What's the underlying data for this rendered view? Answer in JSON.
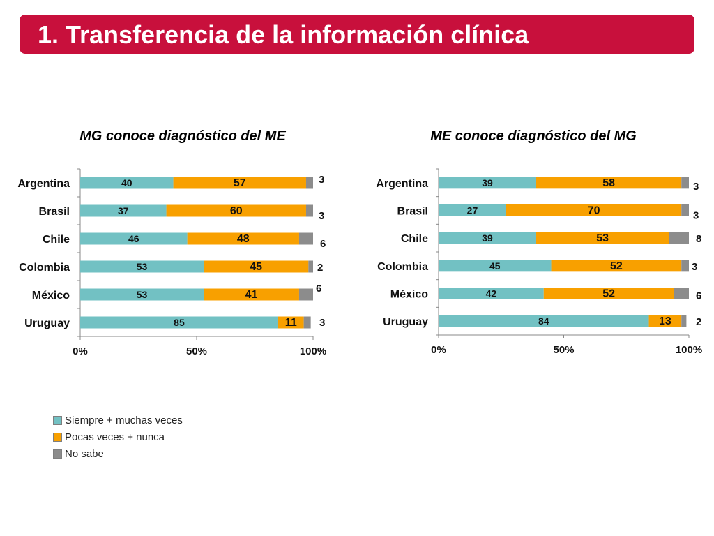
{
  "title": "1. Transferencia de la información clínica",
  "colors": {
    "siempre": "#72c1c3",
    "pocas": "#f8a000",
    "no_sabe": "#8c8c8c",
    "accent": "#c8103c"
  },
  "legend": [
    {
      "label": "Siempre + muchas veces",
      "color": "#72c1c3"
    },
    {
      "label": "Pocas veces + nunca",
      "color": "#f8a000"
    },
    {
      "label": "No sabe",
      "color": "#8c8c8c"
    }
  ],
  "chart_data": [
    {
      "type": "bar",
      "orientation": "horizontal",
      "stacked": true,
      "title": "MG conoce diagnóstico del ME",
      "categories": [
        "Argentina",
        "Brasil",
        "Chile",
        "Colombia",
        "México",
        "Uruguay"
      ],
      "series": [
        {
          "name": "Siempre + muchas veces",
          "values": [
            40,
            37,
            46,
            53,
            53,
            85
          ]
        },
        {
          "name": "Pocas veces + nunca",
          "values": [
            57,
            60,
            48,
            45,
            41,
            11
          ]
        },
        {
          "name": "No sabe",
          "values": [
            3,
            3,
            6,
            2,
            6,
            3
          ]
        }
      ],
      "xlim": [
        0,
        100
      ],
      "xticks": [
        "0%",
        "50%",
        "100%"
      ]
    },
    {
      "type": "bar",
      "orientation": "horizontal",
      "stacked": true,
      "title": "ME conoce diagnóstico del MG",
      "categories": [
        "Argentina",
        "Brasil",
        "Chile",
        "Colombia",
        "México",
        "Uruguay"
      ],
      "series": [
        {
          "name": "Siempre + muchas veces",
          "values": [
            39,
            27,
            39,
            45,
            42,
            84
          ]
        },
        {
          "name": "Pocas veces + nunca",
          "values": [
            58,
            70,
            53,
            52,
            52,
            13
          ]
        },
        {
          "name": "No sabe",
          "values": [
            3,
            3,
            8,
            3,
            6,
            2
          ]
        }
      ],
      "xlim": [
        0,
        100
      ],
      "xticks": [
        "0%",
        "50%",
        "100%"
      ]
    }
  ]
}
